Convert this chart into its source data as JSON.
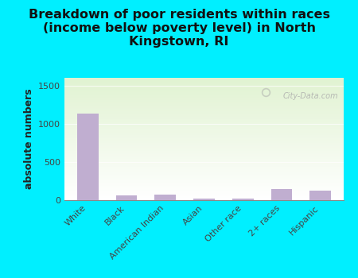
{
  "title": "Breakdown of poor residents within races\n(income below poverty level) in North\nKingstown, RI",
  "categories": [
    "White",
    "Black",
    "American Indian",
    "Asian",
    "Other race",
    "2+ races",
    "Hispanic"
  ],
  "values": [
    1130,
    65,
    75,
    20,
    18,
    145,
    125
  ],
  "bar_color": "#c0aed0",
  "ylabel": "absolute numbers",
  "ylim": [
    0,
    1600
  ],
  "yticks": [
    0,
    500,
    1000,
    1500
  ],
  "background_color": "#00efff",
  "watermark": "City-Data.com",
  "title_fontsize": 11.5,
  "ylabel_fontsize": 9,
  "tick_fontsize": 8
}
